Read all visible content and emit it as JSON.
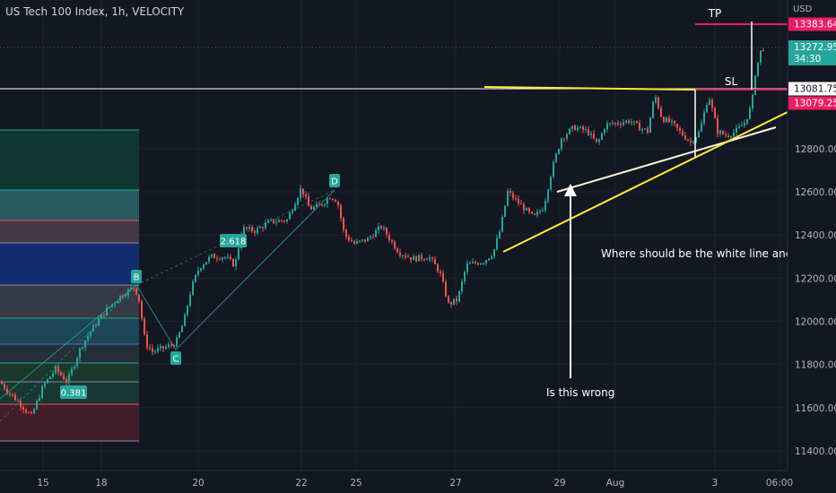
{
  "header": {
    "title": "US Tech 100 Index, 1h, VELOCITY",
    "currency": "USD"
  },
  "colors": {
    "background": "#131722",
    "up": "#26a69a",
    "down": "#ef5350",
    "tp_line": "#e91e63",
    "white_line": "#ffffff",
    "yellow_line": "#ffeb3b",
    "price_tag_green": "#26a69a",
    "price_tag_red": "#e91e63"
  },
  "chart_data": {
    "type": "line",
    "title": "US Tech 100 Index, 1h, VELOCITY",
    "x_ticks": [
      "15",
      "18",
      "20",
      "22",
      "25",
      "27",
      "29",
      "Aug",
      "3",
      "06:00"
    ],
    "y_ticks": [
      11400,
      11600,
      11800,
      12000,
      12200,
      12400,
      12600,
      12800
    ],
    "ylim": [
      11350,
      13430
    ],
    "price_series": {
      "x": [
        "15",
        "18",
        "20",
        "22",
        "25",
        "27",
        "29",
        "Aug",
        "3"
      ],
      "close": [
        11700,
        12150,
        12330,
        12580,
        12380,
        12180,
        12900,
        12920,
        13272.95
      ]
    },
    "pattern_points": [
      {
        "label": "B",
        "value": 12160
      },
      {
        "label": "C",
        "value": 11880
      },
      {
        "label": "D",
        "value": 12600
      }
    ],
    "fib_labels": [
      "2.618",
      "0.381"
    ],
    "price_tags": [
      {
        "value": "13383.64",
        "kind": "tp"
      },
      {
        "value": "13272.95",
        "sub": "34:30",
        "kind": "last"
      },
      {
        "value": "13081.75",
        "kind": "line"
      },
      {
        "value": "13079.25",
        "kind": "sl"
      }
    ],
    "annotations": {
      "tp": "TP",
      "sl": "SL",
      "question": "Where should be the white line and yellow l",
      "is_wrong": "Is this wrong"
    }
  }
}
